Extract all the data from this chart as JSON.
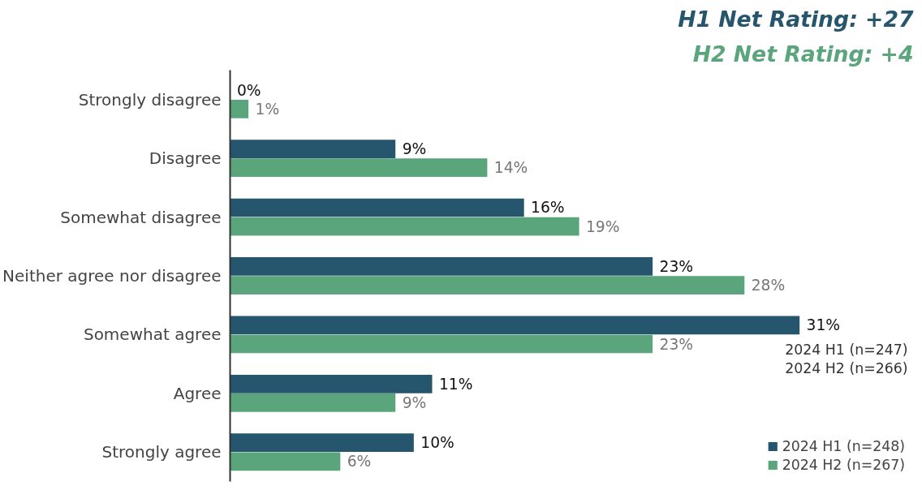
{
  "chart_data": {
    "type": "bar",
    "orientation": "horizontal",
    "title": "H1 Net Rating: +27",
    "subtitle": "H2 Net Rating: +4",
    "categories": [
      "Strongly disagree",
      "Disagree",
      "Somewhat disagree",
      "Neither agree nor disagree",
      "Somewhat agree",
      "Agree",
      "Strongly agree"
    ],
    "series": [
      {
        "name": "2024 H1 (n=248)",
        "color": "#26566e",
        "values": [
          0,
          9,
          16,
          23,
          31,
          11,
          10
        ],
        "value_labels": [
          "0%",
          "9%",
          "16%",
          "23%",
          "31%",
          "11%",
          "10%"
        ]
      },
      {
        "name": "2024 H2 (n=267)",
        "color": "#5aa57b",
        "values": [
          1,
          14,
          19,
          28,
          23,
          9,
          6
        ],
        "value_labels": [
          "1%",
          "14%",
          "19%",
          "28%",
          "23%",
          "9%",
          "6%"
        ]
      }
    ],
    "annotations": [
      "2024 H1 (n=247)",
      "2024 H2 (n=266)"
    ],
    "legend": "bottom right",
    "tick_labels": "y",
    "grid": false
  }
}
